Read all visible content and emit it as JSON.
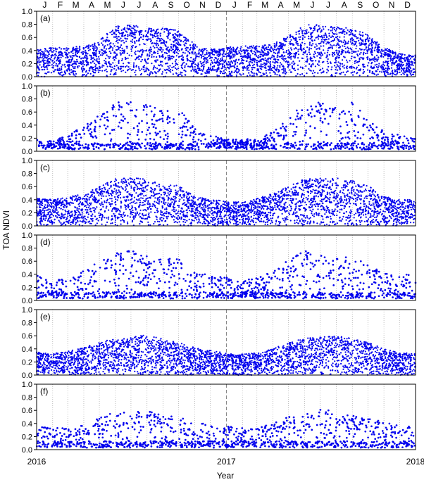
{
  "chart_data": {
    "type": "scatter",
    "xlabel": "Year",
    "ylabel": "TOA NDVI",
    "x_range": [
      "2016-01-01",
      "2018-01-01"
    ],
    "ylim": [
      0,
      1.0
    ],
    "yticks": [
      "0.0",
      "0.2",
      "0.4",
      "0.6",
      "0.8",
      "1.0"
    ],
    "year_ticks": [
      "2016",
      "2017",
      "2018"
    ],
    "months": [
      "J",
      "F",
      "M",
      "A",
      "M",
      "J",
      "J",
      "A",
      "S",
      "O",
      "N",
      "D",
      "J",
      "F",
      "M",
      "A",
      "M",
      "J",
      "J",
      "A",
      "S",
      "O",
      "N",
      "D"
    ],
    "series_color": "#0000ee",
    "panels": [
      {
        "label": "(a)",
        "dense": true,
        "envelope": [
          [
            "2016-01-01",
            0.42
          ],
          [
            "2016-02-01",
            0.45
          ],
          [
            "2016-03-01",
            0.45
          ],
          [
            "2016-04-01",
            0.47
          ],
          [
            "2016-05-01",
            0.55
          ],
          [
            "2016-06-01",
            0.78
          ],
          [
            "2016-07-01",
            0.79
          ],
          [
            "2016-08-01",
            0.76
          ],
          [
            "2016-09-01",
            0.74
          ],
          [
            "2016-10-01",
            0.72
          ],
          [
            "2016-11-01",
            0.5
          ],
          [
            "2016-12-01",
            0.42
          ],
          [
            "2017-01-01",
            0.45
          ],
          [
            "2017-02-01",
            0.47
          ],
          [
            "2017-03-01",
            0.47
          ],
          [
            "2017-04-01",
            0.5
          ],
          [
            "2017-05-01",
            0.62
          ],
          [
            "2017-06-01",
            0.79
          ],
          [
            "2017-07-01",
            0.8
          ],
          [
            "2017-08-01",
            0.76
          ],
          [
            "2017-09-01",
            0.74
          ],
          [
            "2017-10-01",
            0.65
          ],
          [
            "2017-11-01",
            0.45
          ],
          [
            "2017-12-01",
            0.35
          ],
          [
            "2018-01-01",
            0.33
          ]
        ],
        "floor": 0.0
      },
      {
        "label": "(b)",
        "dense": false,
        "envelope": [
          [
            "2016-01-01",
            0.2
          ],
          [
            "2016-02-01",
            0.15
          ],
          [
            "2016-03-01",
            0.25
          ],
          [
            "2016-04-01",
            0.38
          ],
          [
            "2016-05-01",
            0.55
          ],
          [
            "2016-06-01",
            0.78
          ],
          [
            "2016-07-01",
            0.78
          ],
          [
            "2016-08-01",
            0.76
          ],
          [
            "2016-09-01",
            0.6
          ],
          [
            "2016-10-01",
            0.68
          ],
          [
            "2016-11-01",
            0.35
          ],
          [
            "2016-12-01",
            0.25
          ],
          [
            "2017-01-01",
            0.18
          ],
          [
            "2017-02-01",
            0.18
          ],
          [
            "2017-03-01",
            0.2
          ],
          [
            "2017-04-01",
            0.3
          ],
          [
            "2017-05-01",
            0.5
          ],
          [
            "2017-06-01",
            0.78
          ],
          [
            "2017-07-01",
            0.75
          ],
          [
            "2017-08-01",
            0.68
          ],
          [
            "2017-09-01",
            0.75
          ],
          [
            "2017-10-01",
            0.5
          ],
          [
            "2017-11-01",
            0.3
          ],
          [
            "2017-12-01",
            0.25
          ],
          [
            "2018-01-01",
            0.2
          ]
        ],
        "floor": 0.03
      },
      {
        "label": "(c)",
        "dense": true,
        "envelope": [
          [
            "2016-01-01",
            0.42
          ],
          [
            "2016-02-01",
            0.4
          ],
          [
            "2016-03-01",
            0.45
          ],
          [
            "2016-04-01",
            0.5
          ],
          [
            "2016-05-01",
            0.6
          ],
          [
            "2016-06-01",
            0.72
          ],
          [
            "2016-07-01",
            0.73
          ],
          [
            "2016-08-01",
            0.72
          ],
          [
            "2016-09-01",
            0.62
          ],
          [
            "2016-10-01",
            0.62
          ],
          [
            "2016-11-01",
            0.45
          ],
          [
            "2016-12-01",
            0.4
          ],
          [
            "2017-01-01",
            0.38
          ],
          [
            "2017-02-01",
            0.36
          ],
          [
            "2017-03-01",
            0.42
          ],
          [
            "2017-04-01",
            0.5
          ],
          [
            "2017-05-01",
            0.6
          ],
          [
            "2017-06-01",
            0.72
          ],
          [
            "2017-07-01",
            0.73
          ],
          [
            "2017-08-01",
            0.73
          ],
          [
            "2017-09-01",
            0.7
          ],
          [
            "2017-10-01",
            0.62
          ],
          [
            "2017-11-01",
            0.45
          ],
          [
            "2017-12-01",
            0.4
          ],
          [
            "2018-01-01",
            0.4
          ]
        ],
        "floor": 0.0
      },
      {
        "label": "(d)",
        "dense": false,
        "envelope": [
          [
            "2016-01-01",
            0.38
          ],
          [
            "2016-02-01",
            0.32
          ],
          [
            "2016-03-01",
            0.35
          ],
          [
            "2016-04-01",
            0.45
          ],
          [
            "2016-05-01",
            0.6
          ],
          [
            "2016-06-01",
            0.72
          ],
          [
            "2016-07-01",
            0.76
          ],
          [
            "2016-08-01",
            0.7
          ],
          [
            "2016-09-01",
            0.62
          ],
          [
            "2016-10-01",
            0.68
          ],
          [
            "2016-11-01",
            0.42
          ],
          [
            "2016-12-01",
            0.4
          ],
          [
            "2017-01-01",
            0.35
          ],
          [
            "2017-02-01",
            0.3
          ],
          [
            "2017-03-01",
            0.35
          ],
          [
            "2017-04-01",
            0.45
          ],
          [
            "2017-05-01",
            0.62
          ],
          [
            "2017-06-01",
            0.76
          ],
          [
            "2017-07-01",
            0.7
          ],
          [
            "2017-08-01",
            0.65
          ],
          [
            "2017-09-01",
            0.72
          ],
          [
            "2017-10-01",
            0.55
          ],
          [
            "2017-11-01",
            0.42
          ],
          [
            "2017-12-01",
            0.4
          ],
          [
            "2018-01-01",
            0.4
          ]
        ],
        "floor": 0.03
      },
      {
        "label": "(e)",
        "dense": true,
        "envelope": [
          [
            "2016-01-01",
            0.35
          ],
          [
            "2016-02-01",
            0.33
          ],
          [
            "2016-03-01",
            0.36
          ],
          [
            "2016-04-01",
            0.42
          ],
          [
            "2016-05-01",
            0.5
          ],
          [
            "2016-06-01",
            0.56
          ],
          [
            "2016-07-01",
            0.58
          ],
          [
            "2016-08-01",
            0.62
          ],
          [
            "2016-09-01",
            0.55
          ],
          [
            "2016-10-01",
            0.5
          ],
          [
            "2016-11-01",
            0.42
          ],
          [
            "2016-12-01",
            0.38
          ],
          [
            "2017-01-01",
            0.33
          ],
          [
            "2017-02-01",
            0.32
          ],
          [
            "2017-03-01",
            0.34
          ],
          [
            "2017-04-01",
            0.4
          ],
          [
            "2017-05-01",
            0.5
          ],
          [
            "2017-06-01",
            0.56
          ],
          [
            "2017-07-01",
            0.58
          ],
          [
            "2017-08-01",
            0.6
          ],
          [
            "2017-09-01",
            0.56
          ],
          [
            "2017-10-01",
            0.5
          ],
          [
            "2017-11-01",
            0.4
          ],
          [
            "2017-12-01",
            0.34
          ],
          [
            "2018-01-01",
            0.33
          ]
        ],
        "floor": 0.0
      },
      {
        "label": "(f)",
        "dense": false,
        "envelope": [
          [
            "2016-01-01",
            0.35
          ],
          [
            "2016-02-01",
            0.33
          ],
          [
            "2016-03-01",
            0.33
          ],
          [
            "2016-04-01",
            0.4
          ],
          [
            "2016-05-01",
            0.5
          ],
          [
            "2016-06-01",
            0.57
          ],
          [
            "2016-07-01",
            0.58
          ],
          [
            "2016-08-01",
            0.6
          ],
          [
            "2016-09-01",
            0.52
          ],
          [
            "2016-10-01",
            0.5
          ],
          [
            "2016-11-01",
            0.42
          ],
          [
            "2016-12-01",
            0.38
          ],
          [
            "2017-01-01",
            0.36
          ],
          [
            "2017-02-01",
            0.33
          ],
          [
            "2017-03-01",
            0.33
          ],
          [
            "2017-04-01",
            0.4
          ],
          [
            "2017-05-01",
            0.5
          ],
          [
            "2017-06-01",
            0.58
          ],
          [
            "2017-07-01",
            0.62
          ],
          [
            "2017-08-01",
            0.6
          ],
          [
            "2017-09-01",
            0.52
          ],
          [
            "2017-10-01",
            0.48
          ],
          [
            "2017-11-01",
            0.42
          ],
          [
            "2017-12-01",
            0.36
          ],
          [
            "2018-01-01",
            0.36
          ]
        ],
        "floor": 0.03
      }
    ]
  }
}
